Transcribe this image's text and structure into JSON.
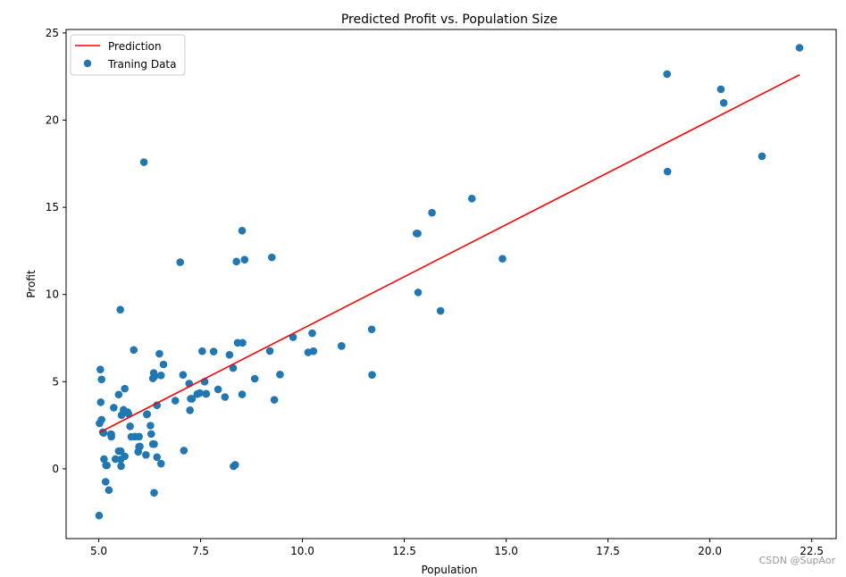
{
  "chart_data": {
    "type": "scatter",
    "title": "Predicted Profit vs. Population Size",
    "xlabel": "Population",
    "ylabel": "Profit",
    "xlim": [
      4.2,
      23.1
    ],
    "ylim": [
      -4.0,
      25.2
    ],
    "xticks": [
      5.0,
      7.5,
      10.0,
      12.5,
      15.0,
      17.5,
      20.0,
      22.5
    ],
    "xtick_labels": [
      "5.0",
      "7.5",
      "10.0",
      "12.5",
      "15.0",
      "17.5",
      "20.0",
      "22.5"
    ],
    "yticks": [
      0,
      5,
      10,
      15,
      20,
      25
    ],
    "ytick_labels": [
      "0",
      "5",
      "10",
      "15",
      "20",
      "25"
    ],
    "grid": false,
    "legend_position": "top-left",
    "series": [
      {
        "name": "Prediction",
        "type": "line",
        "color": "#ff0000",
        "x": [
          5.03,
          22.2
        ],
        "y": [
          2.1,
          22.6
        ]
      },
      {
        "name": "Traning Data",
        "type": "scatter",
        "color": "#1f77b4",
        "points": [
          [
            6.11,
            17.59
          ],
          [
            5.53,
            9.13
          ],
          [
            8.52,
            13.66
          ],
          [
            7.0,
            11.85
          ],
          [
            5.86,
            6.82
          ],
          [
            8.38,
            11.89
          ],
          [
            7.48,
            4.35
          ],
          [
            8.58,
            12.0
          ],
          [
            6.49,
            6.6
          ],
          [
            5.05,
            3.82
          ],
          [
            5.71,
            3.25
          ],
          [
            14.16,
            15.5
          ],
          [
            5.73,
            3.16
          ],
          [
            8.41,
            7.23
          ],
          [
            5.64,
            0.72
          ],
          [
            5.37,
            3.51
          ],
          [
            6.37,
            5.3
          ],
          [
            5.13,
            0.56
          ],
          [
            6.43,
            3.65
          ],
          [
            7.07,
            5.39
          ],
          [
            6.19,
            3.14
          ],
          [
            20.27,
            21.77
          ],
          [
            5.49,
            4.26
          ],
          [
            6.33,
            5.19
          ],
          [
            5.56,
            3.08
          ],
          [
            18.95,
            22.64
          ],
          [
            12.83,
            13.5
          ],
          [
            10.96,
            7.05
          ],
          [
            13.18,
            14.69
          ],
          [
            22.2,
            24.15
          ],
          [
            5.25,
            -1.22
          ],
          [
            6.59,
            5.99
          ],
          [
            9.25,
            12.13
          ],
          [
            5.89,
            1.85
          ],
          [
            8.21,
            6.54
          ],
          [
            7.93,
            4.56
          ],
          [
            8.1,
            4.12
          ],
          [
            5.61,
            3.39
          ],
          [
            12.84,
            10.12
          ],
          [
            6.35,
            5.5
          ],
          [
            5.41,
            0.56
          ],
          [
            6.88,
            3.91
          ],
          [
            11.71,
            5.39
          ],
          [
            5.77,
            2.44
          ],
          [
            7.82,
            6.73
          ],
          [
            7.09,
            1.05
          ],
          [
            5.07,
            5.13
          ],
          [
            5.8,
            1.84
          ],
          [
            11.7,
            8.0
          ],
          [
            5.54,
            1.02
          ],
          [
            7.54,
            6.75
          ],
          [
            5.31,
            1.84
          ],
          [
            7.42,
            4.29
          ],
          [
            7.6,
            5.0
          ],
          [
            6.33,
            1.42
          ],
          [
            6.36,
            1.42
          ],
          [
            6.27,
            2.48
          ],
          [
            5.64,
            4.6
          ],
          [
            9.31,
            3.96
          ],
          [
            9.45,
            5.41
          ],
          [
            8.83,
            5.17
          ],
          [
            5.17,
            -0.74
          ],
          [
            21.28,
            17.93
          ],
          [
            14.91,
            12.05
          ],
          [
            18.96,
            17.05
          ],
          [
            7.22,
            4.89
          ],
          [
            5.99,
            1.27
          ],
          [
            12.8,
            13.5
          ],
          [
            10.96,
            7.04
          ],
          [
            5.07,
            2.82
          ],
          [
            5.04,
            5.7
          ],
          [
            6.16,
            0.8
          ],
          [
            7.63,
            4.3
          ],
          [
            5.01,
            -2.68
          ],
          [
            13.39,
            9.06
          ],
          [
            5.02,
            2.61
          ],
          [
            5.12,
            2.06
          ],
          [
            6.43,
            0.67
          ],
          [
            5.2,
            0.2
          ],
          [
            7.64,
            4.31
          ],
          [
            10.27,
            6.75
          ],
          [
            5.55,
            0.16
          ],
          [
            5.31,
            1.98
          ],
          [
            6.29,
            2.0
          ],
          [
            6.36,
            -1.37
          ],
          [
            8.3,
            5.78
          ],
          [
            6.18,
            3.12
          ],
          [
            8.35,
            0.23
          ],
          [
            10.24,
            7.78
          ],
          [
            5.49,
            1.02
          ],
          [
            20.34,
            20.99
          ],
          [
            10.14,
            6.68
          ],
          [
            7.26,
            4.02
          ],
          [
            5.3,
            1.99
          ],
          [
            6.53,
            5.36
          ],
          [
            5.97,
            0.98
          ],
          [
            9.2,
            6.76
          ],
          [
            9.77,
            7.55
          ],
          [
            6.01,
            1.28
          ],
          [
            5.99,
            1.85
          ],
          [
            8.53,
            7.23
          ],
          [
            8.52,
            4.27
          ],
          [
            6.53,
            0.3
          ],
          [
            7.24,
            3.36
          ],
          [
            8.31,
            0.15
          ],
          [
            7.29,
            4.02
          ],
          [
            5.18,
            0.2
          ],
          [
            6.0,
            1.28
          ],
          [
            5.54,
            0.54
          ],
          [
            5.1,
            2.1
          ]
        ]
      }
    ]
  },
  "watermark": "CSDN @SupAor"
}
